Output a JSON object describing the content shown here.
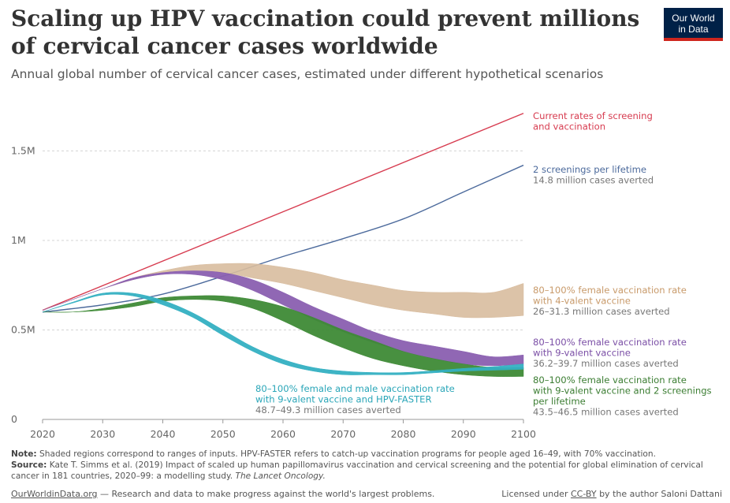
{
  "header": {
    "title": "Scaling up HPV vaccination could prevent millions of cervical cancer cases worldwide",
    "subtitle": "Annual global number of cervical cancer cases, estimated under different hypothetical scenarios",
    "logo_line1": "Our World",
    "logo_line2": "in Data"
  },
  "chart_data": {
    "type": "area",
    "x_ticks": [
      "2020",
      "2030",
      "2040",
      "2050",
      "2060",
      "2070",
      "2080",
      "2090",
      "2100"
    ],
    "y_ticks": [
      "0",
      "0.5M",
      "1M",
      "1.5M"
    ],
    "xlim": [
      2020,
      2100
    ],
    "ylim": [
      0,
      1700000
    ],
    "grid": "horizontal-dashed",
    "series": [
      {
        "name": "Current rates of screening and vaccination",
        "label_lines": [
          "Current rates of screening",
          "and vaccination"
        ],
        "sub": "",
        "color": "#d73c50",
        "kind": "line",
        "x": [
          2020,
          2100
        ],
        "y": [
          610000,
          1710000
        ]
      },
      {
        "name": "2 screenings per lifetime",
        "label_lines": [
          "2 screenings per lifetime"
        ],
        "sub": "14.8 million cases averted",
        "color": "#4c6a9c",
        "kind": "line",
        "x": [
          2020,
          2030,
          2040,
          2050,
          2060,
          2070,
          2080,
          2090,
          2100
        ],
        "y": [
          600000,
          640000,
          700000,
          800000,
          910000,
          1010000,
          1120000,
          1270000,
          1420000
        ]
      },
      {
        "name": "80–100% female vaccination rate with 4-valent vaccine",
        "label_lines": [
          "80–100% female vaccination rate",
          "with 4-valent vaccine"
        ],
        "sub": "26–31.3 million cases averted",
        "color": "#d8bc9e",
        "label_color": "#c89a6a",
        "kind": "band",
        "x": [
          2020,
          2025,
          2030,
          2035,
          2040,
          2045,
          2050,
          2055,
          2060,
          2065,
          2070,
          2075,
          2080,
          2085,
          2090,
          2095,
          2100
        ],
        "lower": [
          610000,
          670000,
          730000,
          780000,
          820000,
          830000,
          820000,
          790000,
          760000,
          720000,
          680000,
          640000,
          610000,
          590000,
          570000,
          570000,
          580000
        ],
        "upper": [
          610000,
          670000,
          730000,
          790000,
          830000,
          860000,
          870000,
          870000,
          850000,
          820000,
          780000,
          750000,
          720000,
          710000,
          710000,
          710000,
          760000
        ]
      },
      {
        "name": "80–100% female vaccination rate with 9-valent vaccine",
        "label_lines": [
          "80–100% female vaccination rate",
          "with 9-valent vaccine"
        ],
        "sub": "36.2–39.7 million cases averted",
        "color": "#8a5fb0",
        "label_color": "#7b4fa6",
        "kind": "band",
        "x": [
          2020,
          2025,
          2030,
          2035,
          2040,
          2045,
          2050,
          2055,
          2060,
          2065,
          2070,
          2075,
          2080,
          2085,
          2090,
          2095,
          2100
        ],
        "lower": [
          610000,
          670000,
          730000,
          780000,
          810000,
          810000,
          780000,
          720000,
          640000,
          560000,
          490000,
          430000,
          380000,
          340000,
          310000,
          300000,
          310000
        ],
        "upper": [
          610000,
          670000,
          730000,
          790000,
          820000,
          830000,
          820000,
          780000,
          710000,
          630000,
          560000,
          490000,
          440000,
          410000,
          380000,
          350000,
          360000
        ]
      },
      {
        "name": "80–100% female vaccination rate with 9-valent vaccine and 2 screenings per lifetime",
        "label_lines": [
          "80–100% female vaccination rate",
          "with 9-valent vaccine and 2 screenings",
          "per lifetime"
        ],
        "sub": "43.5–46.5 million cases averted",
        "color": "#3e8a36",
        "label_color": "#3b7d32",
        "kind": "band",
        "x": [
          2020,
          2025,
          2030,
          2035,
          2040,
          2045,
          2050,
          2055,
          2060,
          2065,
          2070,
          2075,
          2080,
          2085,
          2090,
          2095,
          2100
        ],
        "lower": [
          600000,
          600000,
          610000,
          630000,
          660000,
          670000,
          660000,
          620000,
          550000,
          470000,
          400000,
          340000,
          300000,
          270000,
          250000,
          240000,
          240000
        ],
        "upper": [
          600000,
          600000,
          620000,
          650000,
          680000,
          690000,
          690000,
          670000,
          630000,
          570000,
          500000,
          440000,
          380000,
          340000,
          310000,
          290000,
          290000
        ]
      },
      {
        "name": "80–100% female and male vaccination rate with 9-valent vaccine and HPV-FASTER",
        "label_lines": [
          "80–100% female and male vaccination rate",
          "with 9-valent vaccine and HPV-FASTER"
        ],
        "sub": "48.7–49.3 million cases averted",
        "color": "#34b0c2",
        "label_color": "#2aa6b8",
        "kind": "band",
        "x": [
          2020,
          2025,
          2030,
          2035,
          2040,
          2045,
          2050,
          2055,
          2060,
          2065,
          2070,
          2075,
          2080,
          2085,
          2090,
          2095,
          2100
        ],
        "lower": [
          600000,
          650000,
          695000,
          690000,
          640000,
          570000,
          470000,
          380000,
          310000,
          270000,
          250000,
          250000,
          250000,
          260000,
          270000,
          275000,
          280000
        ],
        "upper": [
          600000,
          655000,
          705000,
          705000,
          665000,
          595000,
          500000,
          405000,
          335000,
          290000,
          270000,
          262000,
          262000,
          272000,
          285000,
          295000,
          310000
        ]
      }
    ]
  },
  "notes": {
    "note_label": "Note:",
    "note_text": " Shaded regions correspond to ranges of inputs. HPV-FASTER refers to catch-up vaccination programs for people aged 16–49, with 70% vaccination.",
    "source_label": "Source:",
    "source_text": " Kate T. Simms et al. (2019) Impact of scaled up human papillomavirus vaccination and cervical screening and the potential for global elimination of cervical cancer in 181 countries, 2020–99: a modelling study. ",
    "source_journal": "The Lancet Oncology."
  },
  "footer": {
    "site": "OurWorldinData.org",
    "tagline": " — Research and data to make progress against the world's largest problems.",
    "license_prefix": "Licensed under ",
    "license": "CC-BY",
    "license_suffix": " by the author Saloni Dattani"
  }
}
